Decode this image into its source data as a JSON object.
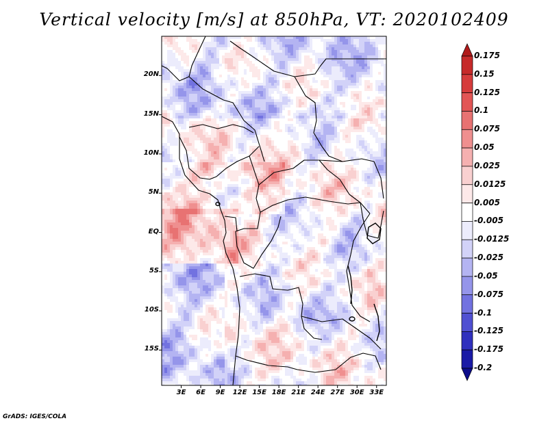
{
  "title": "Vertical velocity [m/s] at 850hPa, VT: 2020102409",
  "credit": "GrADS: IGES/COLA",
  "chart_data": {
    "type": "heatmap",
    "variable": "Vertical velocity",
    "units": "m/s",
    "level": "850hPa",
    "valid_time": "2020102409",
    "lat_labels": [
      "20N",
      "15N",
      "10N",
      "5N",
      "EQ",
      "5S",
      "10S",
      "15S"
    ],
    "lat_values": [
      20,
      15,
      10,
      5,
      0,
      -5,
      -10,
      -15
    ],
    "lon_labels": [
      "3E",
      "6E",
      "9E",
      "12E",
      "15E",
      "18E",
      "21E",
      "24E",
      "27E",
      "30E",
      "33E"
    ],
    "lon_values": [
      3,
      6,
      9,
      12,
      15,
      18,
      21,
      24,
      27,
      30,
      33
    ],
    "lon_range": [
      0,
      34.5
    ],
    "lat_range": [
      -19.5,
      25
    ],
    "colorbar": {
      "labels": [
        "0.175",
        "0.15",
        "0.125",
        "0.1",
        "0.075",
        "0.05",
        "0.025",
        "0.0125",
        "0.005",
        "-0.005",
        "-0.0125",
        "-0.025",
        "-0.05",
        "-0.075",
        "-0.1",
        "-0.125",
        "-0.175",
        "-0.2"
      ],
      "colors": [
        "#b01a1a",
        "#c62a2a",
        "#d63c3c",
        "#e25555",
        "#e87272",
        "#ef8f8f",
        "#f5b0b0",
        "#f9d0d0",
        "#fde9e9",
        "#ffffff",
        "#ececfc",
        "#d2d2f8",
        "#b4b4f2",
        "#9595ea",
        "#7272e0",
        "#5050d2",
        "#3030be",
        "#1a1aa6",
        "#0c0c8a"
      ]
    }
  }
}
